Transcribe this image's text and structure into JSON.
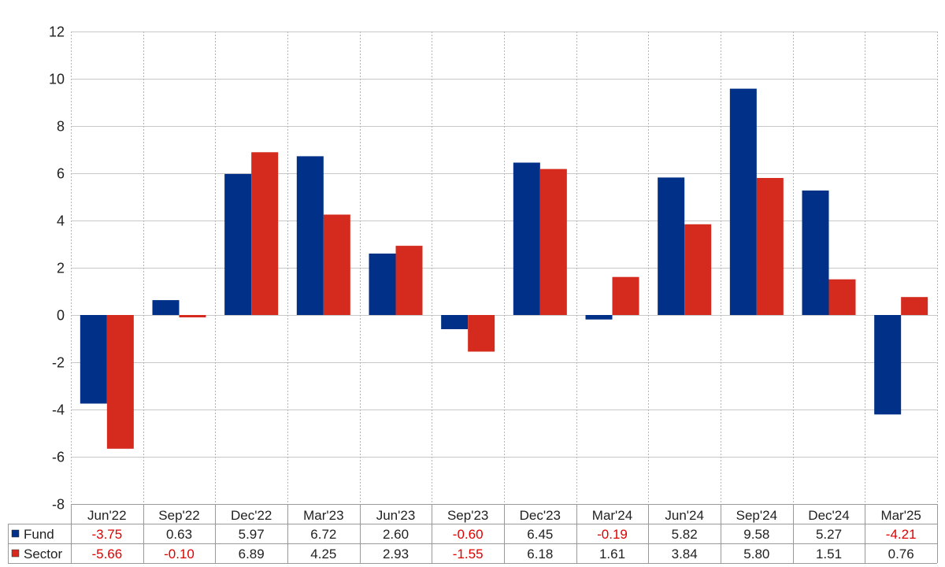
{
  "chart_data": {
    "type": "bar",
    "categories": [
      "Jun'22",
      "Sep'22",
      "Dec'22",
      "Mar'23",
      "Jun'23",
      "Sep'23",
      "Dec'23",
      "Mar'24",
      "Jun'24",
      "Sep'24",
      "Dec'24",
      "Mar'25"
    ],
    "series": [
      {
        "name": "Fund",
        "color": "#003087",
        "values": [
          -3.75,
          0.63,
          5.97,
          6.72,
          2.6,
          -0.6,
          6.45,
          -0.19,
          5.82,
          9.58,
          5.27,
          -4.21
        ],
        "labels": [
          "-3.75",
          "0.63",
          "5.97",
          "6.72",
          "2.60",
          "-0.60",
          "6.45",
          "-0.19",
          "5.82",
          "9.58",
          "5.27",
          "-4.21"
        ]
      },
      {
        "name": "Sector",
        "color": "#d52b1e",
        "values": [
          -5.66,
          -0.1,
          6.89,
          4.25,
          2.93,
          -1.55,
          6.18,
          1.61,
          3.84,
          5.8,
          1.51,
          0.76
        ],
        "labels": [
          "-5.66",
          "-0.10",
          "6.89",
          "4.25",
          "2.93",
          "-1.55",
          "6.18",
          "1.61",
          "3.84",
          "5.80",
          "1.51",
          "0.76"
        ]
      }
    ],
    "ylim": [
      -8,
      12
    ],
    "yticks": [
      -8,
      -6,
      -4,
      -2,
      0,
      2,
      4,
      6,
      8,
      10,
      12
    ],
    "grid": true,
    "negative_color": "#e00000",
    "legend": "data-table-left"
  }
}
